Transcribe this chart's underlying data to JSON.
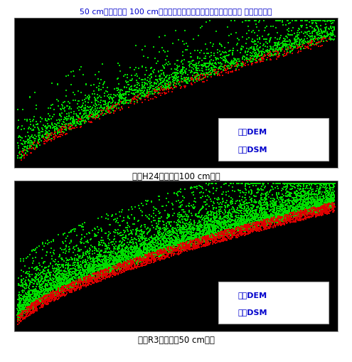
{
  "title": "50 cmメッシュと 100 cmメッシュの断面図の点群比較　［（株） パスコ提供］",
  "caption1": "図　H24年計測　100 cm間隔",
  "caption2": "図　R3年計測　50 cm間隔",
  "legend_red": "赤：DEM",
  "legend_green": "緑：DSM",
  "bg_color": "#000000",
  "fig_bg": "#ffffff",
  "title_color": "#0000cc",
  "caption_color": "#000000",
  "legend_text_color": "#0000cc",
  "legend_bg": "#ffffff",
  "green_color": "#00dd00",
  "red_color": "#dd0000",
  "panel_border_color": "#888888"
}
